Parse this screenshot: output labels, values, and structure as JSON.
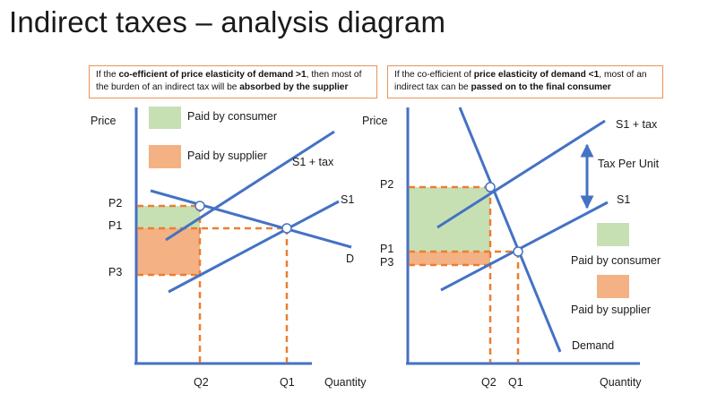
{
  "title": "Indirect taxes – analysis diagram",
  "left_panel": {
    "note": {
      "p1": "If the ",
      "b1": "co-efficient of price elasticity of demand >1",
      "p2": ", then most of the burden of an indirect tax will be ",
      "b2": "absorbed by the supplier"
    },
    "y_axis_label": "Price",
    "x_axis_label": "Quantity",
    "legend": [
      {
        "label": "Paid by consumer",
        "color": "#c6e0b4"
      },
      {
        "label": "Paid by supplier",
        "color": "#f4b183"
      }
    ],
    "curve_labels": {
      "s1_tax": "S1 + tax",
      "s1": "S1",
      "d": "D"
    },
    "price_labels": {
      "p2": "P2",
      "p1": "P1",
      "p3": "P3"
    },
    "quantity_labels": {
      "q2": "Q2",
      "q1": "Q1"
    }
  },
  "right_panel": {
    "note": {
      "p1": "If the co-efficient of ",
      "b1": "price elasticity of demand <1",
      "p2": ", most of an indirect tax can be ",
      "b2": "passed on to the final consumer"
    },
    "y_axis_label": "Price",
    "x_axis_label": "Quantity",
    "legend": [
      {
        "label": "Paid by consumer",
        "color": "#c6e0b4"
      },
      {
        "label": "Paid by supplier",
        "color": "#f4b183"
      }
    ],
    "curve_labels": {
      "s1_tax": "S1 + tax",
      "s1": "S1",
      "demand": "Demand",
      "tax_per_unit": "Tax Per Unit"
    },
    "price_labels": {
      "p2": "P2",
      "p1": "P1",
      "p3": "P3"
    },
    "quantity_labels": {
      "q2": "Q2",
      "q1": "Q1"
    }
  },
  "colors": {
    "axis": "#4472c4",
    "curve": "#4472c4",
    "dash": "#ed7d31",
    "consumer_area": "#c6e0b4",
    "supplier_area": "#f4b183",
    "note_border": "#e8935a"
  }
}
